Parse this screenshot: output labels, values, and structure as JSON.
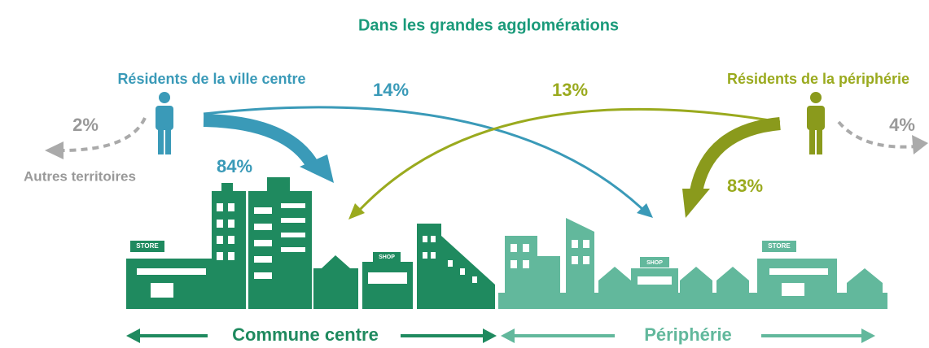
{
  "title": "Dans les grandes agglomérations",
  "groups": [
    {
      "label": "Résidents de la ville centre",
      "stay": "84%",
      "cross": "14%",
      "other": "2%"
    },
    {
      "label": "Résidents de la périphérie",
      "stay": "83%",
      "cross": "13%",
      "other": "4%"
    }
  ],
  "other_label": "Autres territoires",
  "zones": [
    {
      "label": "Commune centre"
    },
    {
      "label": "Périphérie"
    }
  ],
  "signs": [
    "STORE",
    "SHOP",
    "SHOP",
    "STORE"
  ]
}
